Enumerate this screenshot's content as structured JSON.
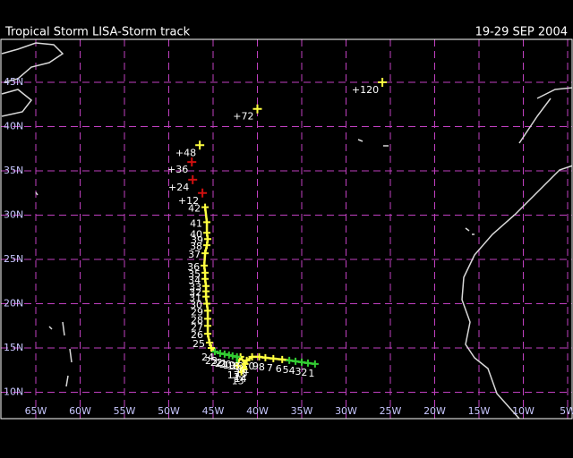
{
  "header": {
    "title": "Tropical Storm LISA-Storm track",
    "dates": "19-29 SEP 2004"
  },
  "map": {
    "lon_ticks": [
      {
        "value": 65,
        "label": "65W"
      },
      {
        "value": 60,
        "label": "60W"
      },
      {
        "value": 55,
        "label": "55W"
      },
      {
        "value": 50,
        "label": "50W"
      },
      {
        "value": 45,
        "label": "45W"
      },
      {
        "value": 40,
        "label": "40W"
      },
      {
        "value": 35,
        "label": "35W"
      },
      {
        "value": 30,
        "label": "30W"
      },
      {
        "value": 25,
        "label": "25W"
      },
      {
        "value": 20,
        "label": "20W"
      },
      {
        "value": 15,
        "label": "15W"
      },
      {
        "value": 10,
        "label": "10W"
      },
      {
        "value": 5,
        "label": "5W"
      }
    ],
    "lat_ticks": [
      {
        "value": 45,
        "label": "45N"
      },
      {
        "value": 40,
        "label": "40N"
      },
      {
        "value": 35,
        "label": "35N"
      },
      {
        "value": 30,
        "label": "30N"
      },
      {
        "value": 25,
        "label": "25N"
      },
      {
        "value": 20,
        "label": "20N"
      },
      {
        "value": 15,
        "label": "15N"
      },
      {
        "value": 10,
        "label": "10N"
      }
    ],
    "track": [
      {
        "label": "1",
        "lon": 33.5,
        "lat": 13.2,
        "color": "#33cc33"
      },
      {
        "label": "2",
        "lon": 34.3,
        "lat": 13.3,
        "color": "#33cc33"
      },
      {
        "label": "3",
        "lon": 35.0,
        "lat": 13.4,
        "color": "#33cc33"
      },
      {
        "label": "4",
        "lon": 35.7,
        "lat": 13.5,
        "color": "#33cc33"
      },
      {
        "label": "5",
        "lon": 36.4,
        "lat": 13.6,
        "color": "#33cc33"
      },
      {
        "label": "6",
        "lon": 37.2,
        "lat": 13.7,
        "color": "#ffff40"
      },
      {
        "label": "7",
        "lon": 38.2,
        "lat": 13.8,
        "color": "#ffff40"
      },
      {
        "label": "8",
        "lon": 39.1,
        "lat": 13.9,
        "color": "#ffff40"
      },
      {
        "label": "9",
        "lon": 39.8,
        "lat": 14.0,
        "color": "#ffff40"
      },
      {
        "label": "10",
        "lon": 40.6,
        "lat": 14.0,
        "color": "#ffff40"
      },
      {
        "label": "11",
        "lon": 41.2,
        "lat": 13.6,
        "color": "#ffff40"
      },
      {
        "label": "12",
        "lon": 41.6,
        "lat": 12.8,
        "color": "#ffff40"
      },
      {
        "label": "13",
        "lon": 41.8,
        "lat": 12.3,
        "color": "#ffff40"
      },
      {
        "label": "14",
        "lon": 41.5,
        "lat": 12.6,
        "color": "#ffff40"
      },
      {
        "label": "15",
        "lon": 41.4,
        "lat": 13.2,
        "color": "#ffff40"
      },
      {
        "label": "16",
        "lon": 41.9,
        "lat": 14.0,
        "color": "#ffff40"
      },
      {
        "label": "17",
        "lon": 42.3,
        "lat": 13.0,
        "color": "#ffff40"
      },
      {
        "label": "18",
        "lon": 42.3,
        "lat": 14.0,
        "color": "#33cc33"
      },
      {
        "label": "19",
        "lon": 42.8,
        "lat": 14.1,
        "color": "#33cc33"
      },
      {
        "label": "20",
        "lon": 43.2,
        "lat": 14.2,
        "color": "#33cc33"
      },
      {
        "label": "21",
        "lon": 43.7,
        "lat": 14.3,
        "color": "#33cc33"
      },
      {
        "label": "22",
        "lon": 44.2,
        "lat": 14.4,
        "color": "#33cc33"
      },
      {
        "label": "23",
        "lon": 44.8,
        "lat": 14.6,
        "color": "#33cc33"
      },
      {
        "label": "24",
        "lon": 45.2,
        "lat": 15.0,
        "color": "#ffff40"
      },
      {
        "label": "25",
        "lon": 45.4,
        "lat": 15.6,
        "color": "#ffff40"
      },
      {
        "label": "26",
        "lon": 45.6,
        "lat": 16.6,
        "color": "#ffff40"
      },
      {
        "label": "27",
        "lon": 45.6,
        "lat": 17.5,
        "color": "#ffff40"
      },
      {
        "label": "28",
        "lon": 45.6,
        "lat": 18.3,
        "color": "#ffff40"
      },
      {
        "label": "29",
        "lon": 45.6,
        "lat": 19.2,
        "color": "#ffff40"
      },
      {
        "label": "30",
        "lon": 45.7,
        "lat": 20.0,
        "color": "#ffff40"
      },
      {
        "label": "31",
        "lon": 45.8,
        "lat": 20.8,
        "color": "#ffff40"
      },
      {
        "label": "32",
        "lon": 45.8,
        "lat": 21.4,
        "color": "#ffff40"
      },
      {
        "label": "33",
        "lon": 45.8,
        "lat": 22.0,
        "color": "#ffff40"
      },
      {
        "label": "34",
        "lon": 45.9,
        "lat": 22.8,
        "color": "#ffff40"
      },
      {
        "label": "35",
        "lon": 45.9,
        "lat": 23.5,
        "color": "#ffff40"
      },
      {
        "label": "36",
        "lon": 46.0,
        "lat": 24.3,
        "color": "#ffff40"
      },
      {
        "label": "37",
        "lon": 45.9,
        "lat": 25.7,
        "color": "#ffff40"
      },
      {
        "label": "38",
        "lon": 45.7,
        "lat": 26.6,
        "color": "#ffff40"
      },
      {
        "label": "39",
        "lon": 45.6,
        "lat": 27.3,
        "color": "#ffff40"
      },
      {
        "label": "40",
        "lon": 45.7,
        "lat": 28.0,
        "color": "#ffff40"
      },
      {
        "label": "41",
        "lon": 45.7,
        "lat": 29.2,
        "color": "#ffff40"
      },
      {
        "label": "42",
        "lon": 45.9,
        "lat": 30.9,
        "color": "#ffff40"
      }
    ],
    "forecast": [
      {
        "label": "+12",
        "lon": 46.2,
        "lat": 32.5,
        "color": "#d01010"
      },
      {
        "label": "+24",
        "lon": 47.3,
        "lat": 34.0,
        "color": "#d01010"
      },
      {
        "label": "+36",
        "lon": 47.4,
        "lat": 36.0,
        "color": "#d01010"
      },
      {
        "label": "+48",
        "lon": 46.5,
        "lat": 37.9,
        "color": "#ffff40"
      },
      {
        "label": "+72",
        "lon": 40.0,
        "lat": 42.0,
        "color": "#ffff40"
      },
      {
        "label": "+120",
        "lon": 25.9,
        "lat": 45.0,
        "color": "#ffff40"
      }
    ]
  }
}
